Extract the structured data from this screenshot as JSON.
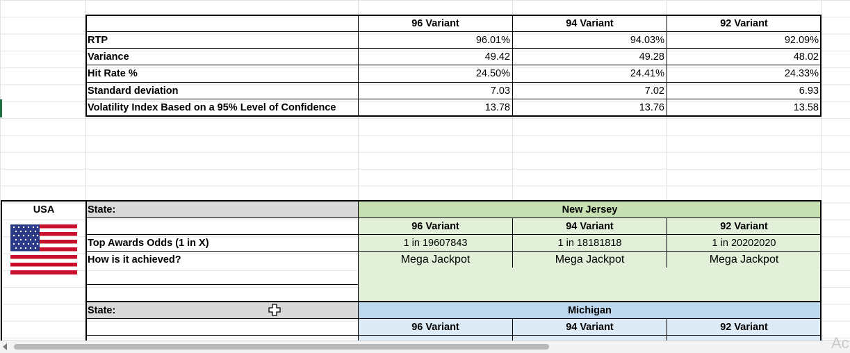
{
  "summary_table": {
    "columns": [
      "96 Variant",
      "94 Variant",
      "92 Variant"
    ],
    "rows": [
      {
        "label": "RTP",
        "values": [
          "96.01%",
          "94.03%",
          "92.09%"
        ]
      },
      {
        "label": "Variance",
        "values": [
          "49.42",
          "49.28",
          "48.02"
        ]
      },
      {
        "label": "Hit Rate %",
        "values": [
          "24.50%",
          "24.41%",
          "24.33%"
        ]
      },
      {
        "label": "Standard deviation",
        "values": [
          "7.03",
          "7.02",
          "6.93"
        ]
      },
      {
        "label": "Volatility Index Based on a 95% Level of Confidence",
        "values": [
          "13.78",
          "13.76",
          "13.58"
        ]
      }
    ]
  },
  "country": {
    "label": "USA",
    "flag_icon": "us-flag-icon"
  },
  "state_blocks": [
    {
      "state_label": "State:",
      "state_name": "New Jersey",
      "color": "#e2efd9",
      "header_color": "#c6e0b4",
      "columns": [
        "96 Variant",
        "94 Variant",
        "92 Variant"
      ],
      "odds_label": "Top Awards Odds (1 in X)",
      "odds": [
        "1 in  19607843",
        "1 in  18181818",
        "1 in  20202020"
      ],
      "how_label": "How is it achieved?",
      "how": [
        "Mega Jackpot",
        "Mega Jackpot",
        "Mega Jackpot"
      ]
    },
    {
      "state_label": "State:",
      "state_name": "Michigan",
      "color": "#ddebf7",
      "header_color": "#bdd7ee",
      "columns": [
        "96 Variant",
        "94 Variant",
        "92 Variant"
      ]
    }
  ],
  "label_fill": "#d9d9d9",
  "watermark": "Ac"
}
